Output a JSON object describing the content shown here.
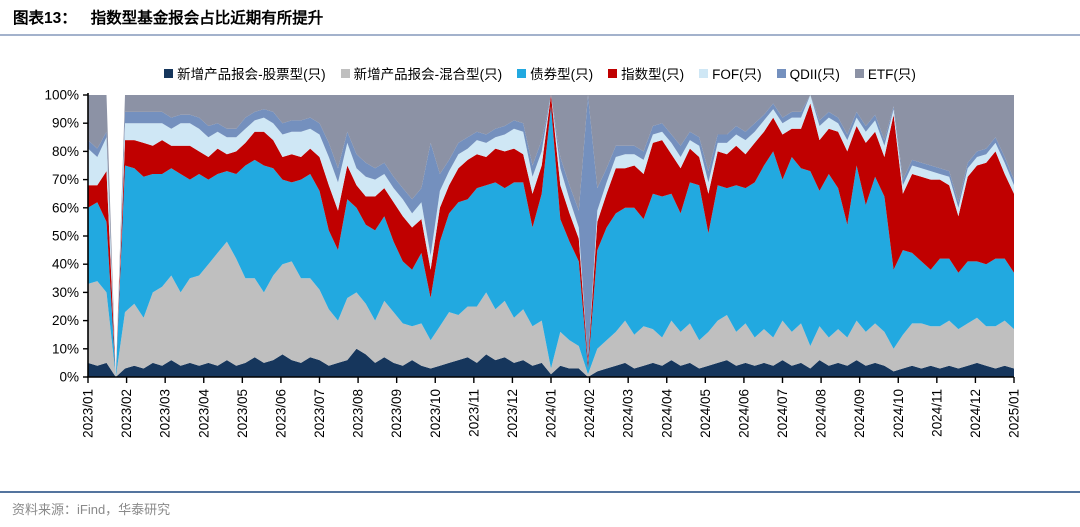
{
  "title": {
    "prefix": "图表13：",
    "text": "指数型基金报会占比近期有所提升"
  },
  "source_text": "资料来源：iFind，华泰研究",
  "colors": {
    "title_rule": "#a3b2cc",
    "source_rule": "#54749e",
    "axis": "#000000",
    "background": "#ffffff"
  },
  "chart_data": {
    "type": "area",
    "stacking": "percent",
    "title": "指数型基金报会占比近期有所提升",
    "xlabel": "",
    "ylabel": "",
    "ylim": [
      0,
      100
    ],
    "grid": false,
    "legend_position": "top",
    "y_ticks": [
      "0%",
      "10%",
      "20%",
      "30%",
      "40%",
      "50%",
      "60%",
      "70%",
      "80%",
      "90%",
      "100%"
    ],
    "x_ticks": [
      "2023/01",
      "2023/02",
      "2023/03",
      "2023/04",
      "2023/05",
      "2023/06",
      "2023/07",
      "2023/08",
      "2023/09",
      "2023/10",
      "2023/11",
      "2023/12",
      "2024/01",
      "2024/02",
      "2024/03",
      "2024/04",
      "2024/05",
      "2024/06",
      "2024/07",
      "2024/08",
      "2024/09",
      "2024/10",
      "2024/11",
      "2024/12",
      "2025/01"
    ],
    "series": [
      {
        "name": "新增产品报会-股票型(只)",
        "color": "#16365c",
        "values": [
          5,
          4,
          5,
          0,
          3,
          4,
          3,
          5,
          4,
          6,
          4,
          5,
          4,
          5,
          4,
          6,
          4,
          5,
          7,
          5,
          6,
          8,
          6,
          5,
          7,
          6,
          4,
          5,
          6,
          10,
          8,
          5,
          7,
          5,
          4,
          6,
          4,
          3,
          4,
          5,
          6,
          7,
          5,
          8,
          6,
          7,
          5,
          6,
          4,
          5,
          1,
          4,
          3,
          3,
          0,
          2,
          3,
          4,
          5,
          3,
          4,
          5,
          4,
          6,
          4,
          5,
          3,
          4,
          5,
          6,
          4,
          5,
          4,
          5,
          4,
          6,
          4,
          5,
          3,
          6,
          4,
          5,
          4,
          6,
          4,
          5,
          4,
          2,
          3,
          4,
          3,
          4,
          3,
          4,
          3,
          4,
          5,
          4,
          3,
          4,
          3
        ]
      },
      {
        "name": "新增产品报会-混合型(只)",
        "color": "#bfbfbf",
        "values": [
          28,
          30,
          25,
          0,
          20,
          22,
          18,
          25,
          28,
          30,
          26,
          30,
          32,
          35,
          40,
          42,
          38,
          30,
          28,
          25,
          30,
          32,
          35,
          30,
          28,
          25,
          20,
          15,
          22,
          20,
          18,
          15,
          20,
          18,
          15,
          12,
          15,
          10,
          14,
          18,
          16,
          18,
          20,
          22,
          18,
          20,
          16,
          18,
          14,
          15,
          2,
          12,
          10,
          8,
          1,
          8,
          10,
          12,
          15,
          12,
          14,
          12,
          10,
          14,
          12,
          14,
          10,
          12,
          15,
          16,
          12,
          14,
          10,
          12,
          10,
          14,
          12,
          14,
          8,
          12,
          10,
          12,
          10,
          14,
          12,
          14,
          12,
          8,
          12,
          15,
          16,
          14,
          15,
          16,
          14,
          15,
          16,
          14,
          15,
          16,
          14
        ]
      },
      {
        "name": "债券型(只)",
        "color": "#22a9e0",
        "values": [
          27,
          28,
          25,
          0,
          52,
          48,
          50,
          42,
          40,
          38,
          42,
          35,
          36,
          30,
          28,
          25,
          30,
          40,
          42,
          45,
          38,
          30,
          28,
          35,
          37,
          35,
          28,
          25,
          35,
          30,
          28,
          32,
          30,
          25,
          22,
          20,
          25,
          15,
          30,
          35,
          40,
          38,
          42,
          38,
          45,
          40,
          48,
          45,
          35,
          45,
          93,
          40,
          35,
          30,
          2,
          35,
          40,
          42,
          40,
          45,
          38,
          48,
          50,
          45,
          42,
          50,
          55,
          35,
          48,
          45,
          52,
          48,
          55,
          58,
          66,
          50,
          62,
          55,
          62,
          48,
          58,
          50,
          40,
          55,
          45,
          52,
          48,
          28,
          30,
          25,
          22,
          20,
          24,
          22,
          20,
          22,
          20,
          22,
          24,
          22,
          20
        ]
      },
      {
        "name": "指数型(只)",
        "color": "#c00000",
        "values": [
          8,
          6,
          18,
          0,
          9,
          10,
          12,
          10,
          12,
          8,
          10,
          12,
          8,
          8,
          9,
          6,
          8,
          8,
          10,
          12,
          10,
          8,
          10,
          8,
          9,
          12,
          16,
          14,
          12,
          8,
          10,
          12,
          10,
          14,
          16,
          15,
          12,
          10,
          12,
          10,
          12,
          14,
          12,
          10,
          12,
          13,
          12,
          10,
          12,
          10,
          4,
          12,
          10,
          8,
          2,
          10,
          12,
          16,
          14,
          15,
          16,
          18,
          20,
          14,
          16,
          12,
          10,
          14,
          12,
          12,
          14,
          12,
          14,
          12,
          12,
          16,
          10,
          14,
          24,
          18,
          16,
          20,
          26,
          14,
          22,
          16,
          14,
          55,
          20,
          28,
          30,
          32,
          28,
          26,
          20,
          30,
          34,
          36,
          38,
          30,
          28
        ]
      },
      {
        "name": "FOF(只)",
        "color": "#cfe7f5",
        "values": [
          13,
          10,
          12,
          0,
          6,
          6,
          7,
          8,
          6,
          6,
          8,
          8,
          8,
          7,
          6,
          6,
          5,
          5,
          4,
          5,
          6,
          8,
          8,
          9,
          7,
          8,
          10,
          10,
          8,
          6,
          7,
          6,
          5,
          5,
          6,
          5,
          6,
          5,
          6,
          5,
          5,
          4,
          5,
          5,
          4,
          6,
          7,
          8,
          6,
          5,
          0,
          6,
          5,
          4,
          0,
          4,
          4,
          4,
          5,
          4,
          5,
          3,
          3,
          4,
          4,
          3,
          4,
          4,
          3,
          4,
          4,
          5,
          4,
          4,
          3,
          4,
          4,
          4,
          3,
          5,
          4,
          3,
          4,
          3,
          4,
          4,
          4,
          2,
          3,
          3,
          3,
          3,
          2,
          3,
          3,
          3,
          3,
          3,
          3,
          4,
          3
        ]
      },
      {
        "name": "QDII(只)",
        "color": "#7490be",
        "values": [
          3,
          3,
          2,
          0,
          4,
          4,
          4,
          4,
          4,
          4,
          3,
          3,
          4,
          4,
          3,
          3,
          3,
          4,
          3,
          3,
          4,
          4,
          4,
          4,
          4,
          4,
          5,
          5,
          4,
          5,
          5,
          4,
          4,
          4,
          4,
          5,
          5,
          40,
          6,
          4,
          4,
          4,
          3,
          3,
          3,
          3,
          3,
          3,
          4,
          4,
          0,
          4,
          5,
          6,
          95,
          8,
          5,
          4,
          3,
          3,
          3,
          3,
          3,
          3,
          4,
          3,
          3,
          4,
          3,
          3,
          3,
          3,
          3,
          2,
          2,
          2,
          2,
          2,
          0,
          2,
          2,
          2,
          2,
          2,
          2,
          2,
          2,
          1,
          2,
          2,
          2,
          2,
          2,
          2,
          2,
          2,
          2,
          2,
          2,
          2,
          2
        ]
      },
      {
        "name": "ETF(只)",
        "color": "#8c92a5",
        "values": [
          16,
          19,
          13,
          0,
          6,
          6,
          6,
          6,
          6,
          8,
          7,
          7,
          8,
          11,
          10,
          12,
          12,
          8,
          6,
          5,
          6,
          10,
          9,
          9,
          8,
          10,
          17,
          26,
          13,
          21,
          24,
          26,
          24,
          29,
          33,
          37,
          33,
          17,
          28,
          23,
          17,
          15,
          13,
          14,
          12,
          11,
          9,
          10,
          25,
          16,
          0,
          22,
          32,
          41,
          0,
          33,
          26,
          18,
          18,
          18,
          20,
          11,
          10,
          14,
          18,
          13,
          15,
          27,
          14,
          14,
          11,
          13,
          10,
          7,
          3,
          8,
          6,
          6,
          0,
          9,
          6,
          8,
          14,
          6,
          11,
          7,
          16,
          4,
          30,
          23,
          24,
          25,
          26,
          27,
          38,
          24,
          20,
          19,
          15,
          22,
          30
        ]
      }
    ]
  }
}
